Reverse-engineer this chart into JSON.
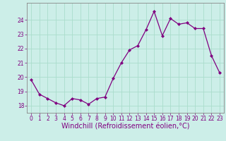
{
  "x": [
    0,
    1,
    2,
    3,
    4,
    5,
    6,
    7,
    8,
    9,
    10,
    11,
    12,
    13,
    14,
    15,
    16,
    17,
    18,
    19,
    20,
    21,
    22,
    23
  ],
  "y": [
    19.8,
    18.8,
    18.5,
    18.2,
    18.0,
    18.5,
    18.4,
    18.1,
    18.5,
    18.6,
    19.9,
    21.0,
    21.9,
    22.2,
    23.3,
    24.6,
    22.9,
    24.1,
    23.7,
    23.8,
    23.4,
    23.4,
    21.5,
    20.3
  ],
  "line_color": "#800080",
  "marker": "D",
  "marker_size": 2,
  "bg_color": "#cceee8",
  "grid_color": "#aaddcc",
  "xlabel": "Windchill (Refroidissement éolien,°C)",
  "ylim": [
    17.5,
    25.2
  ],
  "yticks": [
    18,
    19,
    20,
    21,
    22,
    23,
    24
  ],
  "xticks": [
    0,
    1,
    2,
    3,
    4,
    5,
    6,
    7,
    8,
    9,
    10,
    11,
    12,
    13,
    14,
    15,
    16,
    17,
    18,
    19,
    20,
    21,
    22,
    23
  ],
  "xlim": [
    -0.5,
    23.5
  ],
  "tick_color": "#800080",
  "tick_fontsize": 5.5,
  "xlabel_fontsize": 7.0,
  "xlabel_color": "#800080",
  "spine_color": "#888888",
  "line_width": 0.9
}
